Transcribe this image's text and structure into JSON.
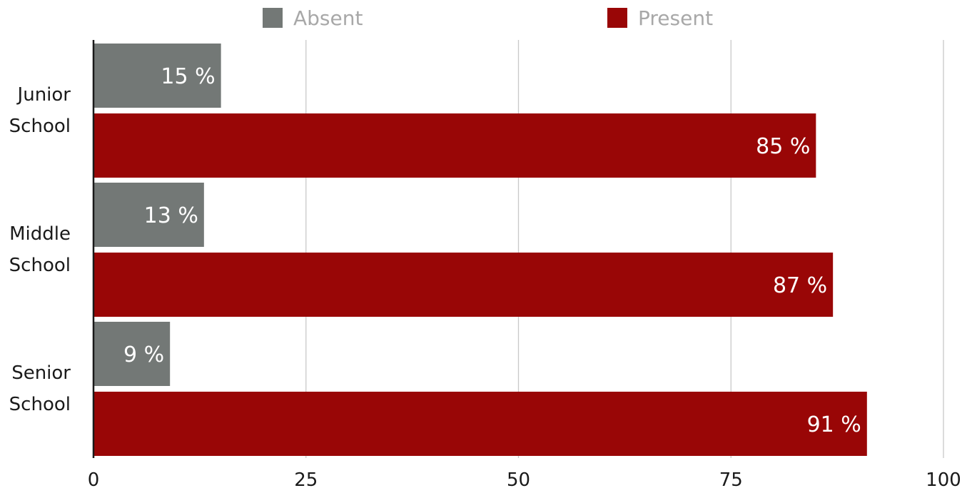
{
  "chart_data": {
    "type": "bar",
    "orientation": "horizontal",
    "categories": [
      [
        "Junior",
        "School"
      ],
      [
        "Middle",
        "School"
      ],
      [
        "Senior",
        "School"
      ]
    ],
    "series": [
      {
        "name": "Absent",
        "color": "#737876",
        "values": [
          15,
          13,
          9
        ]
      },
      {
        "name": "Present",
        "color": "#990606",
        "values": [
          85,
          87,
          91
        ]
      }
    ],
    "value_suffix": " %",
    "xlim": [
      0,
      100
    ],
    "xticks": [
      0,
      25,
      50,
      75,
      100
    ],
    "grid": true,
    "legend": "top-center",
    "title": "",
    "xlabel": "",
    "ylabel": ""
  }
}
